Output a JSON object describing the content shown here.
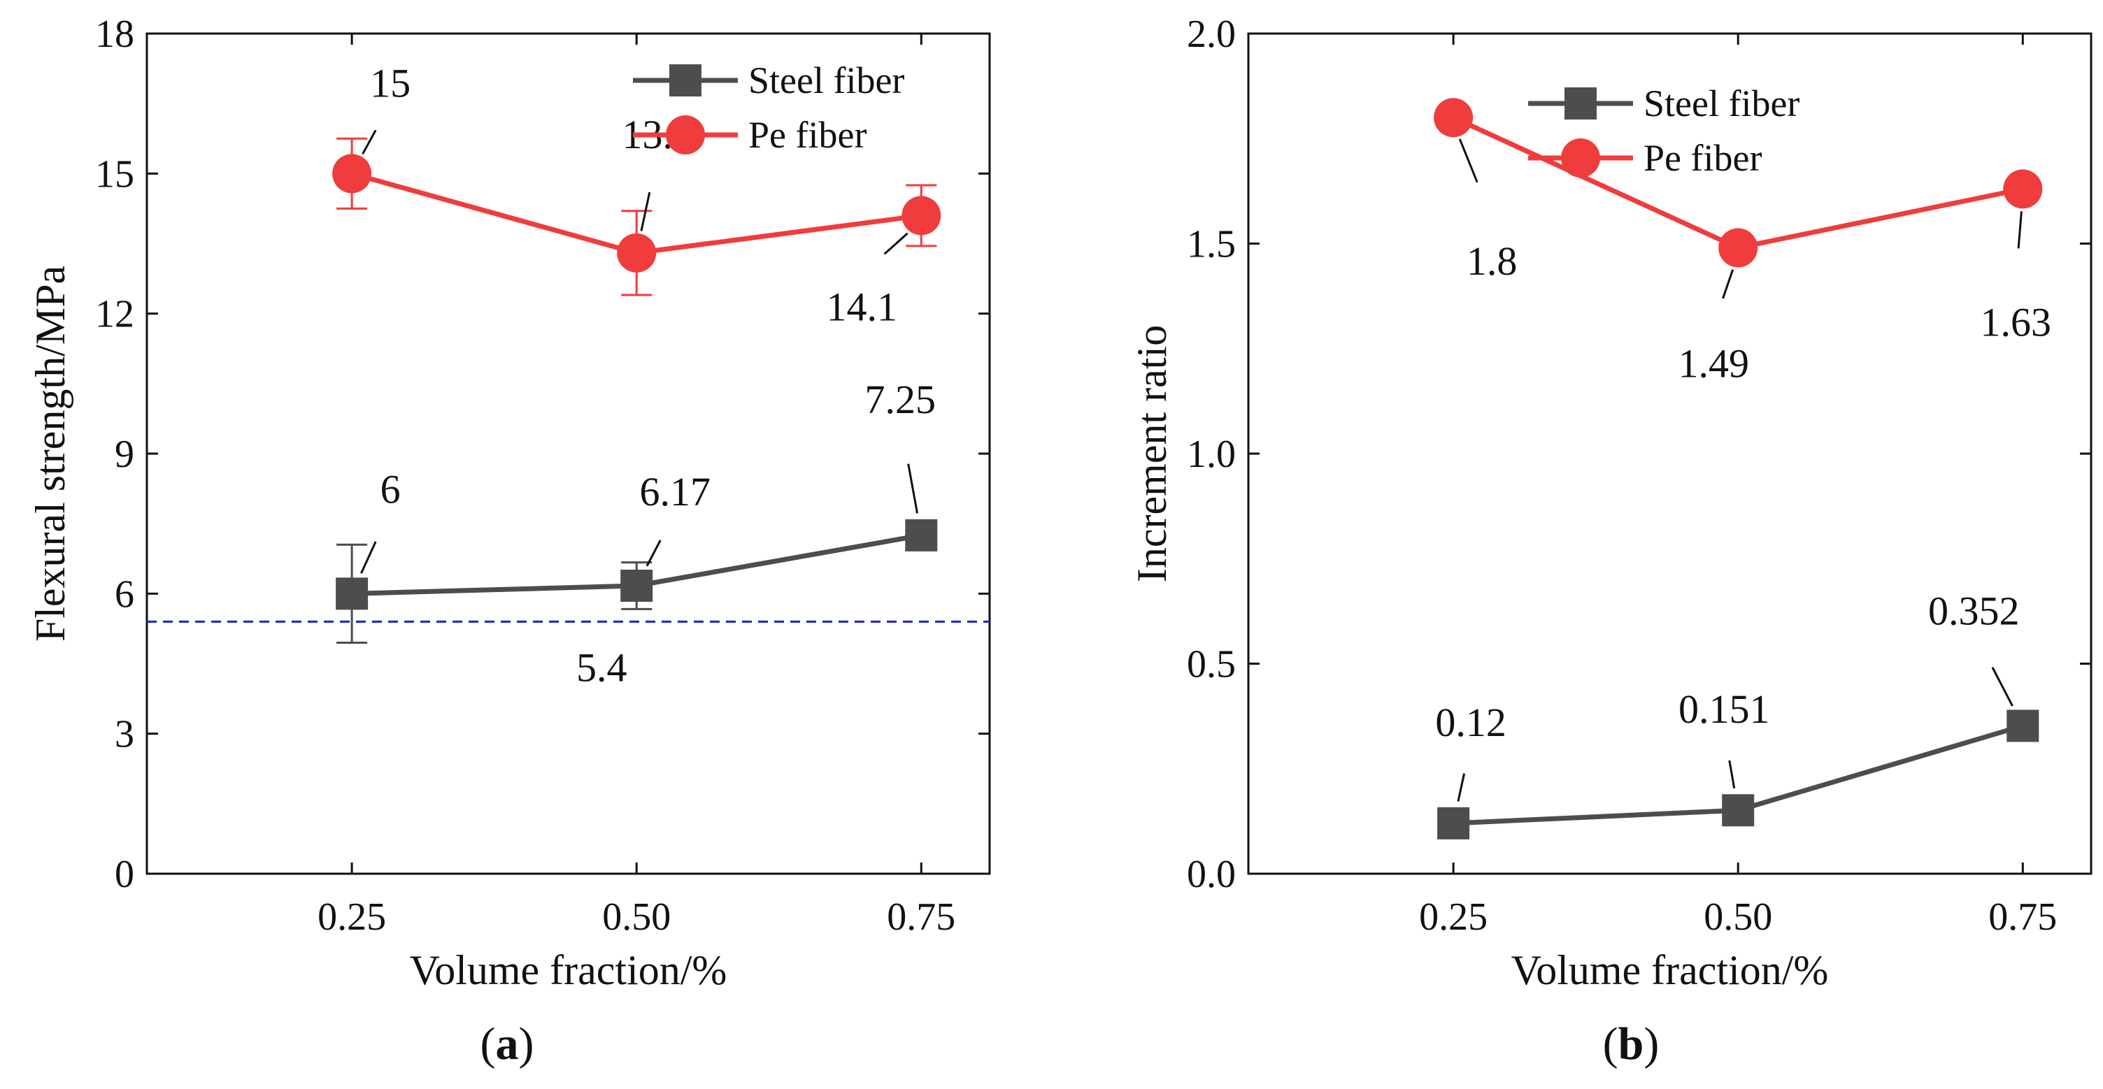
{
  "chart_data": [
    {
      "type": "line",
      "panel_label": "a",
      "xlabel": "Volume fraction/%",
      "ylabel": "Flexural strength/MPa",
      "x": [
        0.25,
        0.5,
        0.75
      ],
      "x_tick_labels": [
        "0.25",
        "0.50",
        "0.75"
      ],
      "xlim": [
        0.07,
        0.81
      ],
      "ylim": [
        0,
        18
      ],
      "y_ticks": [
        0,
        3,
        6,
        9,
        12,
        15,
        18
      ],
      "y_tick_labels": [
        "0",
        "3",
        "6",
        "9",
        "12",
        "15",
        "18"
      ],
      "legend_position": "top-right",
      "grid": false,
      "series": [
        {
          "name": "Steel fiber",
          "marker": "square",
          "color": "#4d4d4d",
          "values": [
            6,
            6.17,
            7.25
          ],
          "labels": [
            "6",
            "6.17",
            "7.25"
          ],
          "error": [
            1.05,
            0.5,
            0.2
          ]
        },
        {
          "name": "Pe fiber",
          "marker": "circle",
          "color": "#f03c3c",
          "values": [
            15,
            13.3,
            14.1
          ],
          "labels": [
            "15",
            "13.3",
            "14.1"
          ],
          "error": [
            0.75,
            0.9,
            0.65
          ]
        }
      ],
      "reference_line": {
        "value": 5.4,
        "label": "5.4",
        "color": "#1f1fd6",
        "style": "dashed"
      }
    },
    {
      "type": "line",
      "panel_label": "b",
      "xlabel": "Volume fraction/%",
      "ylabel": "Increment ratio",
      "x": [
        0.25,
        0.5,
        0.75
      ],
      "x_tick_labels": [
        "0.25",
        "0.50",
        "0.75"
      ],
      "xlim": [
        0.07,
        0.81
      ],
      "ylim": [
        0,
        2.0
      ],
      "y_ticks": [
        0,
        0.5,
        1.0,
        1.5,
        2.0
      ],
      "y_tick_labels": [
        "0.0",
        "0.5",
        "1.0",
        "1.5",
        "2.0"
      ],
      "legend_position": "top-center",
      "grid": false,
      "series": [
        {
          "name": "Steel fiber",
          "marker": "square",
          "color": "#4d4d4d",
          "values": [
            0.12,
            0.151,
            0.352
          ],
          "labels": [
            "0.12",
            "0.151",
            "0.352"
          ]
        },
        {
          "name": "Pe fiber",
          "marker": "circle",
          "color": "#f03c3c",
          "values": [
            1.8,
            1.49,
            1.63
          ],
          "labels": [
            "1.8",
            "1.49",
            "1.63"
          ]
        }
      ]
    }
  ],
  "captions": {
    "left_open": "(",
    "a": "a",
    "left_close": ")",
    "right_open": "(",
    "b": "b",
    "right_close": ")"
  }
}
